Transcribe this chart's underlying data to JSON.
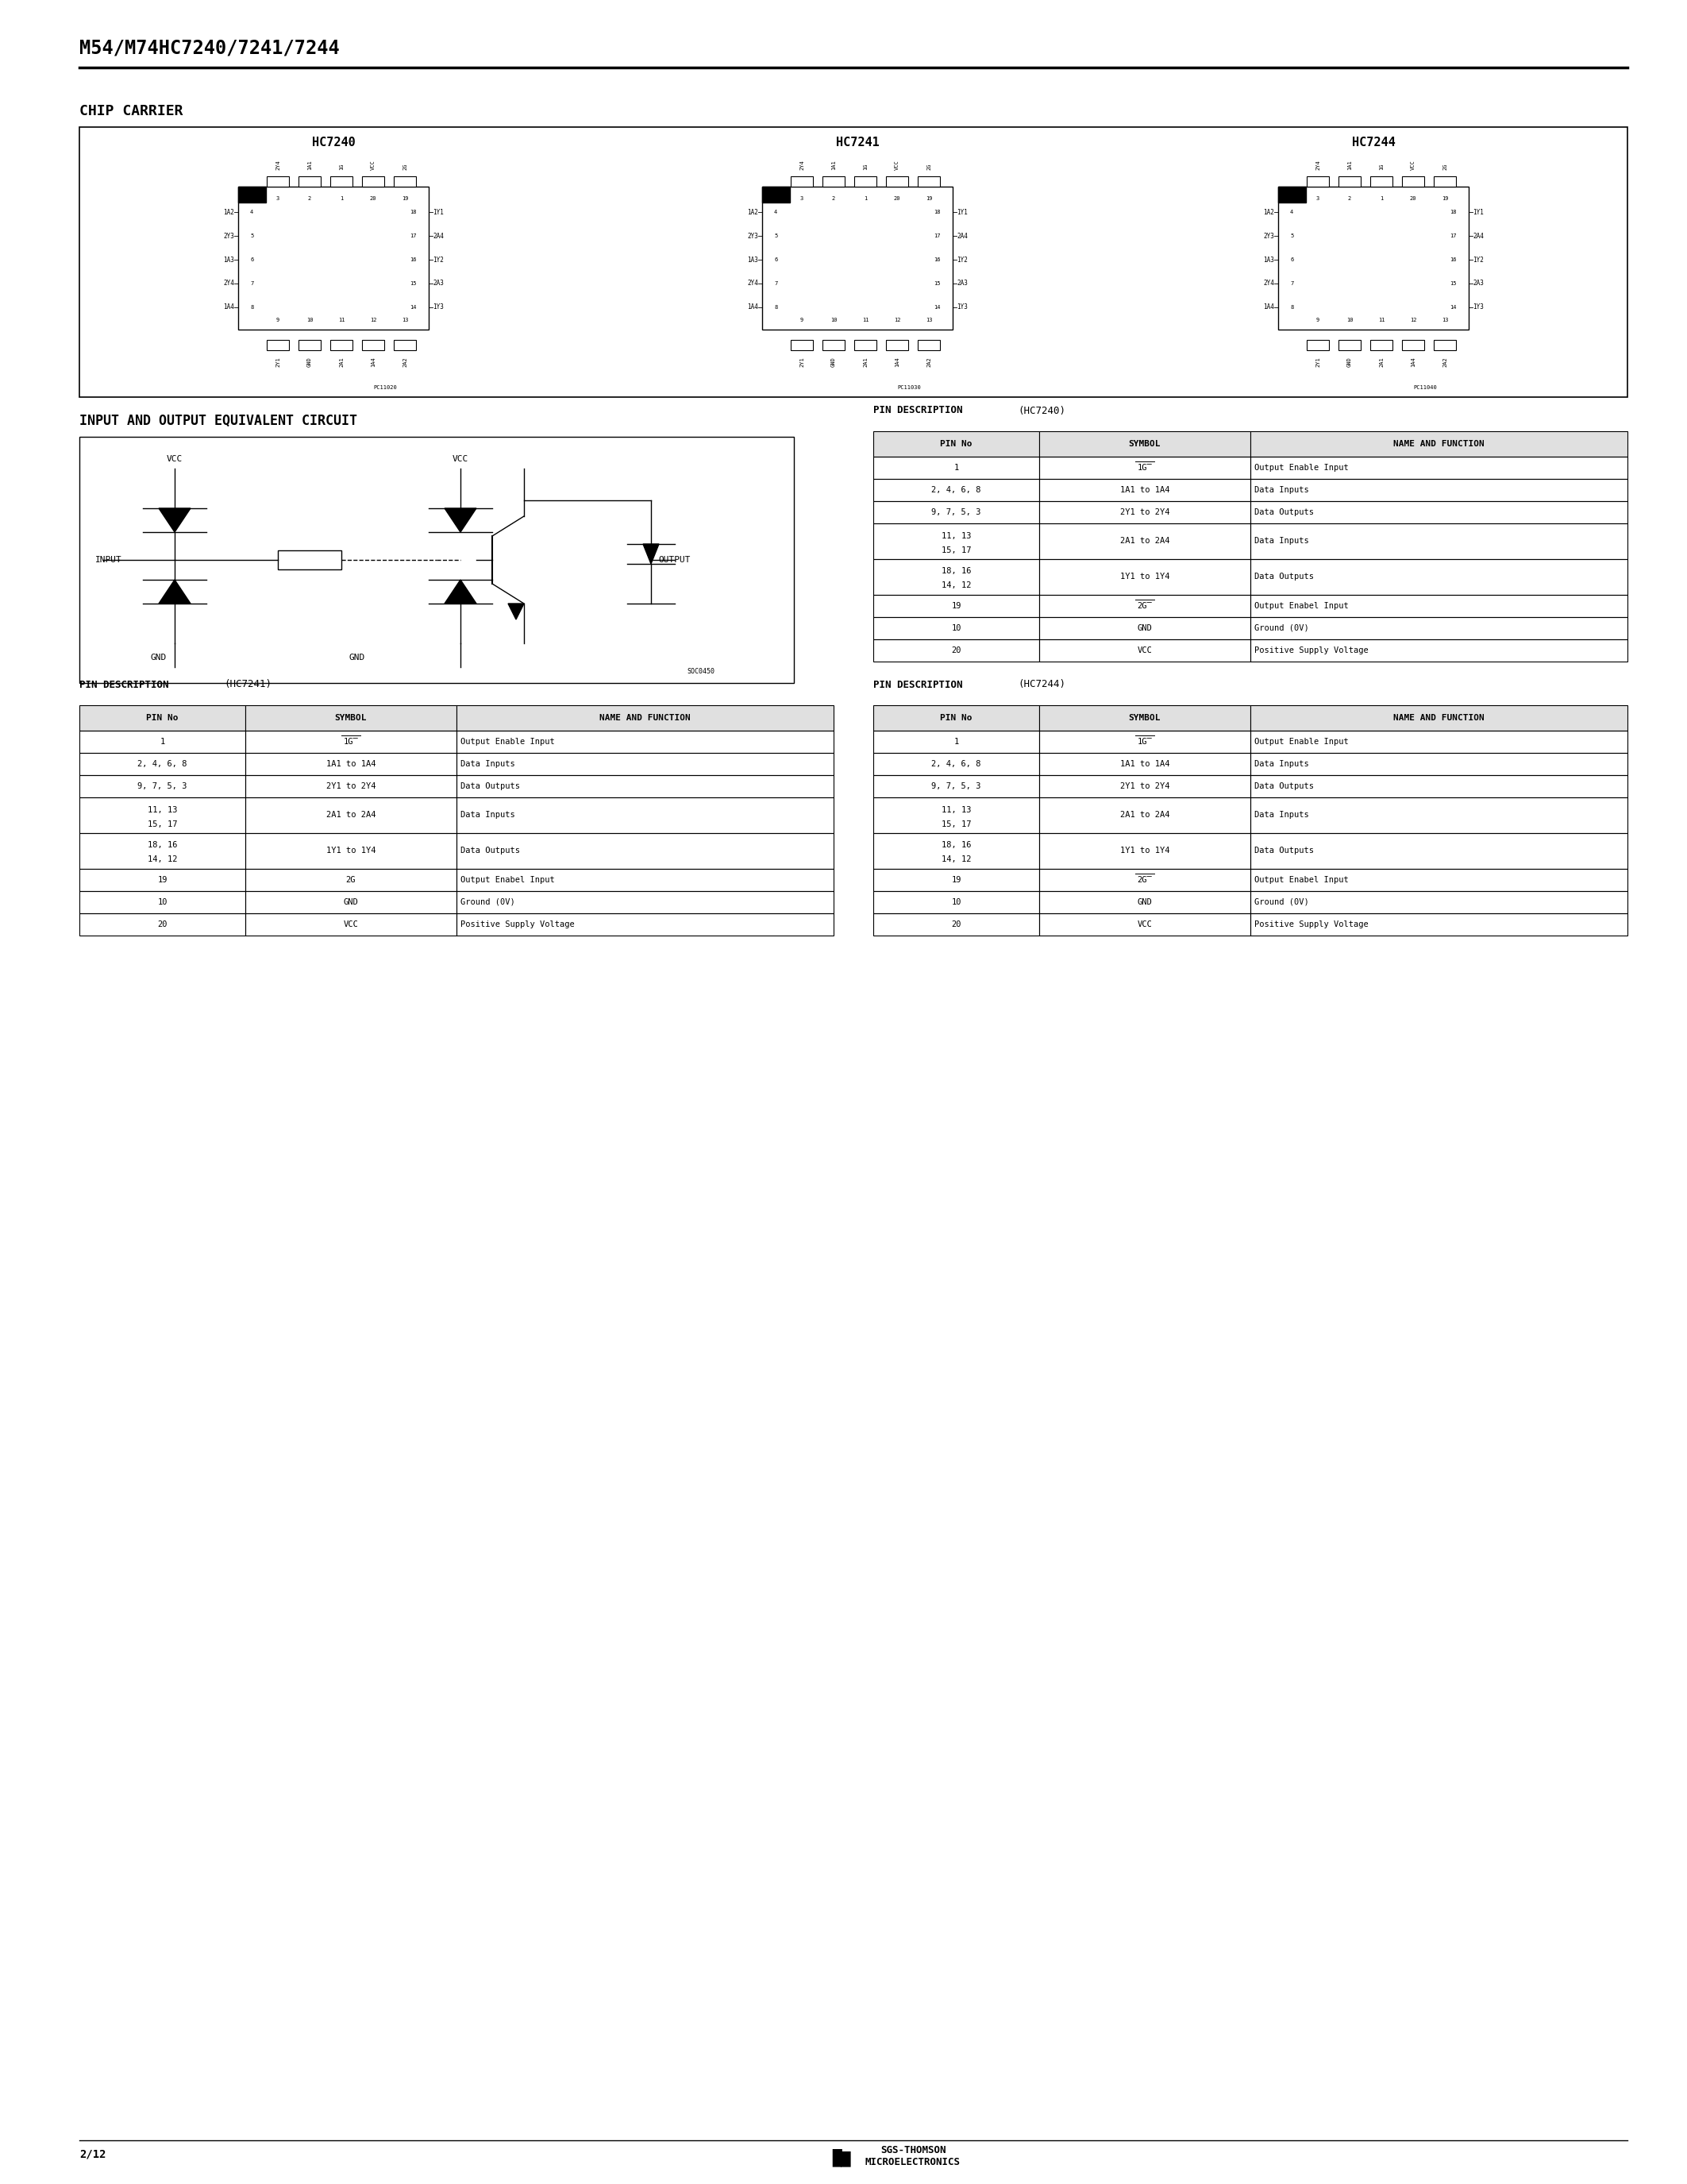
{
  "title": "M54/M74HC7240/7241/7244",
  "chip_carrier_title": "CHIP CARRIER",
  "chip_titles": [
    "HC7240",
    "HC7241",
    "HC7244"
  ],
  "circuit_title": "INPUT AND OUTPUT EQUIVALENT CIRCUIT",
  "pin_desc_title_7240": "PIN DESCRIPTION (HC7240)",
  "pin_desc_title_7241": "PIN DESCRIPTION (HC7241)",
  "pin_desc_title_7244": "PIN DESCRIPTION (HC7244)",
  "table_headers": [
    "PIN No",
    "SYMBOL",
    "NAME AND FUNCTION"
  ],
  "table_rows_7240": [
    [
      "1",
      "1G̅",
      "Output Enable Input"
    ],
    [
      "2, 4, 6, 8",
      "1A1 to 1A4",
      "Data Inputs"
    ],
    [
      "9, 7, 5, 3",
      "2Y1 to 2Y4",
      "Data Outputs"
    ],
    [
      "11, 13, 15, 17",
      "2A1 to 2A4",
      "Data Inputs"
    ],
    [
      "18, 16, 14, 12",
      "1Y1 to 1Y4",
      "Data Outputs"
    ],
    [
      "19",
      "2G̅",
      "Output Enabel Input"
    ],
    [
      "10",
      "GND",
      "Ground (0V)"
    ],
    [
      "20",
      "VCC",
      "Positive Supply Voltage"
    ]
  ],
  "table_rows_7241": [
    [
      "1",
      "1G̅",
      "Output Enable Input"
    ],
    [
      "2, 4, 6, 8",
      "1A1 to 1A4",
      "Data Inputs"
    ],
    [
      "9, 7, 5, 3",
      "2Y1 to 2Y4",
      "Data Outputs"
    ],
    [
      "11, 13, 15, 17",
      "2A1 to 2A4",
      "Data Inputs"
    ],
    [
      "18, 16, 14, 12",
      "1Y1 to 1Y4",
      "Data Outputs"
    ],
    [
      "19",
      "2G",
      "Output Enabel Input"
    ],
    [
      "10",
      "GND",
      "Ground (0V)"
    ],
    [
      "20",
      "VCC",
      "Positive Supply Voltage"
    ]
  ],
  "table_rows_7244": [
    [
      "1",
      "1G̅",
      "Output Enable Input"
    ],
    [
      "2, 4, 6, 8",
      "1A1 to 1A4",
      "Data Inputs"
    ],
    [
      "9, 7, 5, 3",
      "2Y1 to 2Y4",
      "Data Outputs"
    ],
    [
      "11, 13, 15, 17",
      "2A1 to 2A4",
      "Data Inputs"
    ],
    [
      "18, 16, 14, 12",
      "1Y1 to 1Y4",
      "Data Outputs"
    ],
    [
      "19",
      "2G̅",
      "Output Enabel Input"
    ],
    [
      "10",
      "GND",
      "Ground (0V)"
    ],
    [
      "20",
      "VCC",
      "Positive Supply Voltage"
    ]
  ],
  "page_label": "2/12",
  "company": "SGS-THOMSON\nMICROELECTRONICS",
  "bg_color": "#ffffff",
  "text_color": "#000000",
  "border_color": "#000000"
}
